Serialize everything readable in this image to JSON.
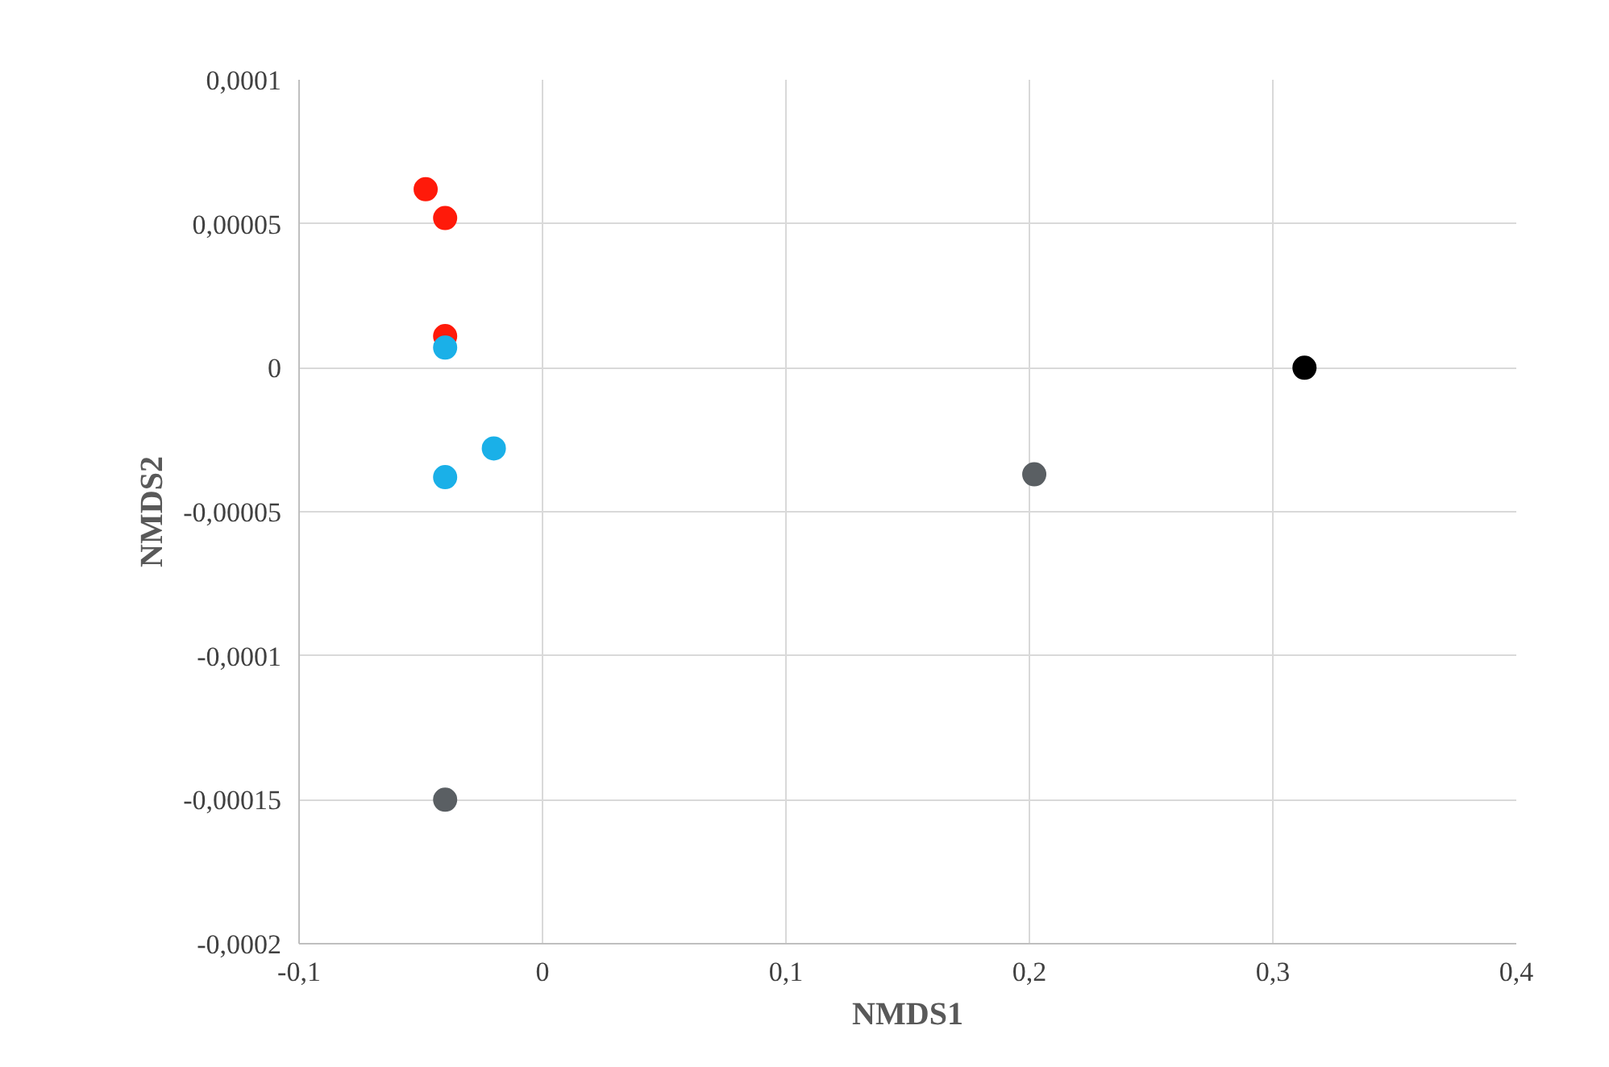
{
  "chart_data": {
    "type": "scatter",
    "xlabel": "NMDS1",
    "ylabel": "NMDS2",
    "xlim": [
      -0.1,
      0.4
    ],
    "ylim": [
      -0.0002,
      0.0001
    ],
    "xticks": [
      {
        "value": -0.1,
        "label": "-0,1"
      },
      {
        "value": 0,
        "label": "0"
      },
      {
        "value": 0.1,
        "label": "0,1"
      },
      {
        "value": 0.2,
        "label": "0,2"
      },
      {
        "value": 0.3,
        "label": "0,3"
      },
      {
        "value": 0.4,
        "label": "0,4"
      }
    ],
    "yticks": [
      {
        "value": -0.0002,
        "label": "-0,0002"
      },
      {
        "value": -0.00015,
        "label": "-0,00015"
      },
      {
        "value": -0.0001,
        "label": "-0,0001"
      },
      {
        "value": -5e-05,
        "label": "-0,00005"
      },
      {
        "value": 0,
        "label": "0"
      },
      {
        "value": 5e-05,
        "label": "0,00005"
      },
      {
        "value": 0.0001,
        "label": "0,0001"
      }
    ],
    "grid": true,
    "marker": "circle",
    "series": [
      {
        "color": "#ff1a0a",
        "x": [
          -0.048,
          -0.04,
          -0.04
        ],
        "values": [
          6.2e-05,
          5.2e-05,
          1.1e-05
        ]
      },
      {
        "color": "#1ab0e8",
        "x": [
          -0.04,
          -0.04,
          -0.02
        ],
        "values": [
          7e-06,
          -3.8e-05,
          -2.8e-05
        ]
      },
      {
        "color": "#5a5f63",
        "x": [
          0.202,
          -0.04
        ],
        "values": [
          -3.7e-05,
          -0.00015
        ]
      },
      {
        "color": "#000000",
        "x": [
          0.313
        ],
        "values": [
          0
        ]
      }
    ]
  }
}
